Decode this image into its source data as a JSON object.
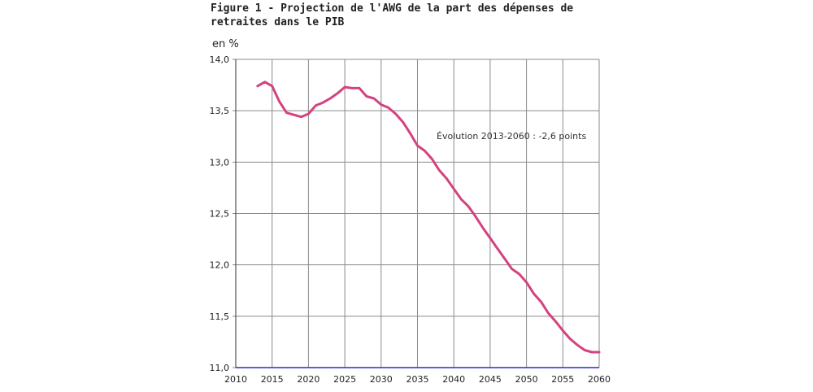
{
  "chart_data": {
    "type": "line",
    "title": "Figure 1 - Projection de l'AWG de la part des dépenses de retraites dans le PIB",
    "ylabel": "en %",
    "xlabel": "",
    "xlim": [
      2010,
      2060
    ],
    "ylim": [
      11.0,
      14.0
    ],
    "xticks": [
      "2010",
      "2015",
      "2020",
      "2025",
      "2030",
      "2035",
      "2040",
      "2045",
      "2050",
      "2055",
      "2060"
    ],
    "yticks": [
      "11,0",
      "11,5",
      "12,0",
      "12,5",
      "13,0",
      "13,5",
      "14,0"
    ],
    "grid": true,
    "annotation": "Évolution 2013-2060 : -2,6 points",
    "series_color": "#d4427f",
    "series": [
      {
        "x": [
          2013,
          2014,
          2015,
          2016,
          2017,
          2018,
          2019,
          2020,
          2021,
          2022,
          2023,
          2024,
          2025,
          2026,
          2027,
          2028,
          2029,
          2030,
          2031,
          2032,
          2033,
          2034,
          2035,
          2036,
          2037,
          2038,
          2039,
          2040,
          2041,
          2042,
          2043,
          2044,
          2045,
          2046,
          2047,
          2048,
          2049,
          2050,
          2051,
          2052,
          2053,
          2054,
          2055,
          2056,
          2057,
          2058,
          2059,
          2060
        ],
        "values": [
          13.74,
          13.78,
          13.74,
          13.59,
          13.48,
          13.46,
          13.44,
          13.47,
          13.55,
          13.58,
          13.62,
          13.67,
          13.73,
          13.72,
          13.72,
          13.64,
          13.62,
          13.56,
          13.53,
          13.47,
          13.39,
          13.28,
          13.16,
          13.11,
          13.03,
          12.92,
          12.84,
          12.74,
          12.64,
          12.57,
          12.47,
          12.36,
          12.26,
          12.16,
          12.06,
          11.96,
          11.91,
          11.83,
          11.72,
          11.64,
          11.53,
          11.45,
          11.36,
          11.28,
          11.22,
          11.17,
          11.15,
          11.15
        ]
      }
    ]
  }
}
